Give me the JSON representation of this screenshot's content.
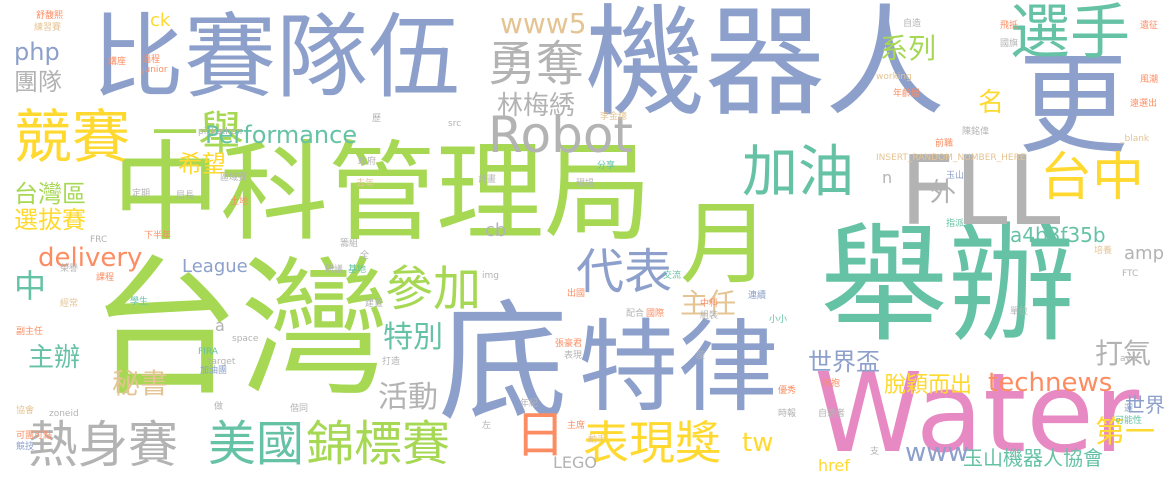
{
  "palette": {
    "green": "#a6d854",
    "teal": "#66c2a5",
    "blue": "#8da0cb",
    "gray": "#b3b3b3",
    "yellow": "#ffd92f",
    "orange": "#fc8d62",
    "pink": "#e78ac3",
    "tan": "#e5c494"
  },
  "words": [
    {
      "text": "機器人",
      "color": "blue"
    },
    {
      "text": "中科管理局",
      "color": "green"
    },
    {
      "text": "台灣",
      "color": "green"
    },
    {
      "text": "舉辦",
      "color": "teal"
    },
    {
      "text": "比賽隊伍",
      "color": "blue"
    },
    {
      "text": "Water",
      "color": "pink"
    },
    {
      "text": "底",
      "color": "blue"
    },
    {
      "text": "特律",
      "color": "blue"
    },
    {
      "text": "更",
      "color": "blue"
    },
    {
      "text": "FLL",
      "color": "gray"
    },
    {
      "text": "月",
      "color": "green"
    },
    {
      "text": "選手",
      "color": "teal"
    },
    {
      "text": "競賽",
      "color": "yellow"
    },
    {
      "text": "一舉",
      "color": "green"
    },
    {
      "text": "Robot",
      "color": "gray"
    },
    {
      "text": "勇奪",
      "color": "gray"
    },
    {
      "text": "加油",
      "color": "teal"
    },
    {
      "text": "台中",
      "color": "yellow"
    },
    {
      "text": "熱身賽",
      "color": "gray"
    },
    {
      "text": "美國",
      "color": "teal"
    },
    {
      "text": "錦標賽",
      "color": "green"
    },
    {
      "text": "表現獎",
      "color": "yellow"
    },
    {
      "text": "參加",
      "color": "green"
    },
    {
      "text": "代表",
      "color": "blue"
    },
    {
      "text": "日",
      "color": "orange"
    },
    {
      "text": "Performance",
      "color": "teal"
    },
    {
      "text": "delivery",
      "color": "orange"
    },
    {
      "text": "林梅綉",
      "color": "gray"
    },
    {
      "text": "www5",
      "color": "tan"
    },
    {
      "text": "主任",
      "color": "tan"
    },
    {
      "text": "technews",
      "color": "orange"
    },
    {
      "text": "世界盃",
      "color": "blue"
    },
    {
      "text": "打氣",
      "color": "gray"
    },
    {
      "text": "脫穎而出",
      "color": "yellow"
    },
    {
      "text": "玉山機器人協會",
      "color": "teal"
    },
    {
      "text": "活動",
      "color": "gray"
    },
    {
      "text": "秘書",
      "color": "tan"
    },
    {
      "text": "特別",
      "color": "teal"
    },
    {
      "text": "主辦",
      "color": "teal"
    },
    {
      "text": "中",
      "color": "teal"
    },
    {
      "text": "台灣區",
      "color": "green"
    },
    {
      "text": "選拔賽",
      "color": "yellow"
    },
    {
      "text": "希望",
      "color": "yellow"
    },
    {
      "text": "php",
      "color": "blue"
    },
    {
      "text": "團隊",
      "color": "gray"
    },
    {
      "text": "系列",
      "color": "green"
    },
    {
      "text": "第一",
      "color": "yellow"
    },
    {
      "text": "www",
      "color": "blue"
    },
    {
      "text": "tw",
      "color": "yellow"
    },
    {
      "text": "外",
      "color": "gray"
    },
    {
      "text": "名",
      "color": "yellow"
    },
    {
      "text": "a4b3f35b",
      "color": "teal"
    },
    {
      "text": "League",
      "color": "blue"
    },
    {
      "text": "cb",
      "color": "gray"
    },
    {
      "text": "amp",
      "color": "gray"
    },
    {
      "text": "href",
      "color": "yellow"
    },
    {
      "text": "LEGO",
      "color": "gray"
    },
    {
      "text": "世界",
      "color": "blue"
    },
    {
      "text": "ck",
      "color": "yellow"
    },
    {
      "text": "n",
      "color": "gray"
    },
    {
      "text": "a",
      "color": "gray"
    },
    {
      "text": "舒馥熙",
      "color": "orange"
    },
    {
      "text": "練習賽",
      "color": "tan"
    },
    {
      "text": "講座",
      "color": "orange"
    },
    {
      "text": "過程",
      "color": "orange"
    },
    {
      "text": "junior",
      "color": "orange"
    },
    {
      "text": "歷",
      "color": "gray"
    },
    {
      "text": "src",
      "color": "gray"
    },
    {
      "text": "李金總",
      "color": "tan"
    },
    {
      "text": "分享",
      "color": "teal"
    },
    {
      "text": "pickathon",
      "color": "gray"
    },
    {
      "text": "政府",
      "color": "gray"
    },
    {
      "text": "計畫",
      "color": "gray"
    },
    {
      "text": "定期",
      "color": "gray"
    },
    {
      "text": "區域賽",
      "color": "gray"
    },
    {
      "text": "去年",
      "color": "tan"
    },
    {
      "text": "現場",
      "color": "gray"
    },
    {
      "text": "局長",
      "color": "gray"
    },
    {
      "text": "土地",
      "color": "orange"
    },
    {
      "text": "基地",
      "color": "teal"
    },
    {
      "text": "研議",
      "color": "gray"
    },
    {
      "text": "全",
      "color": "gray"
    },
    {
      "text": "籌組",
      "color": "gray"
    },
    {
      "text": "學生",
      "color": "teal"
    },
    {
      "text": "課程",
      "color": "orange"
    },
    {
      "text": "建置",
      "color": "gray"
    },
    {
      "text": "FRC",
      "color": "gray"
    },
    {
      "text": "下半年",
      "color": "orange"
    },
    {
      "text": "榮譽",
      "color": "gray"
    },
    {
      "text": "經常",
      "color": "tan"
    },
    {
      "text": "副主任",
      "color": "orange"
    },
    {
      "text": "協會",
      "color": "tan"
    },
    {
      "text": "FIRA",
      "color": "teal"
    },
    {
      "text": "target",
      "color": "gray"
    },
    {
      "text": "zoneid",
      "color": "gray"
    },
    {
      "text": "加油團",
      "color": "blue"
    },
    {
      "text": "打造",
      "color": "gray"
    },
    {
      "text": "space",
      "color": "gray"
    },
    {
      "text": "張豪君",
      "color": "orange"
    },
    {
      "text": "表現",
      "color": "gray"
    },
    {
      "text": "配合",
      "color": "gray"
    },
    {
      "text": "國際",
      "color": "orange"
    },
    {
      "text": "出國",
      "color": "orange"
    },
    {
      "text": "img",
      "color": "gray"
    },
    {
      "text": "交流",
      "color": "teal"
    },
    {
      "text": "連續",
      "color": "blue"
    },
    {
      "text": "中科",
      "color": "orange"
    },
    {
      "text": "組裝",
      "color": "gray"
    },
    {
      "text": "座",
      "color": "gray"
    },
    {
      "text": "年紀",
      "color": "gray"
    },
    {
      "text": "主席",
      "color": "orange"
    },
    {
      "text": "動手",
      "color": "tan"
    },
    {
      "text": "左",
      "color": "gray"
    },
    {
      "text": "偕同",
      "color": "gray"
    },
    {
      "text": "可團可點",
      "color": "orange"
    },
    {
      "text": "競技",
      "color": "blue"
    },
    {
      "text": "做",
      "color": "gray"
    },
    {
      "text": "支",
      "color": "gray"
    },
    {
      "text": "優秀",
      "color": "orange"
    },
    {
      "text": "時報",
      "color": "gray"
    },
    {
      "text": "avw",
      "color": "gray"
    },
    {
      "text": "自適者",
      "color": "gray"
    },
    {
      "text": "可能性",
      "color": "teal"
    },
    {
      "text": "單位",
      "color": "gray"
    },
    {
      "text": "FTC",
      "color": "gray"
    },
    {
      "text": "培養",
      "color": "tan"
    },
    {
      "text": "指派",
      "color": "teal"
    },
    {
      "text": "玉山",
      "color": "blue"
    },
    {
      "text": "INSERT_RANDOM_NUMBER_HERE",
      "color": "tan"
    },
    {
      "text": "前職",
      "color": "orange"
    },
    {
      "text": "陳銘偉",
      "color": "gray"
    },
    {
      "text": "年齡層",
      "color": "orange"
    },
    {
      "text": "working",
      "color": "tan"
    },
    {
      "text": "_blank",
      "color": "tan"
    },
    {
      "text": "國旗",
      "color": "gray"
    },
    {
      "text": "飛抵",
      "color": "orange"
    },
    {
      "text": "遺征",
      "color": "orange"
    },
    {
      "text": "風潮",
      "color": "orange"
    },
    {
      "text": "遠選出",
      "color": "orange"
    },
    {
      "text": "自造",
      "color": "gray"
    },
    {
      "text": "小小",
      "color": "teal"
    },
    {
      "text": "擁抱",
      "color": "orange"
    },
    {
      "text": "選",
      "color": "blue"
    }
  ]
}
